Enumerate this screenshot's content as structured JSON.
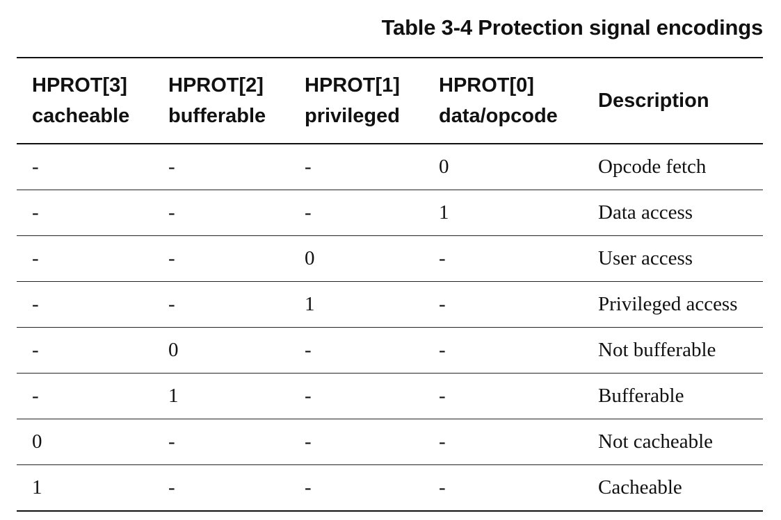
{
  "caption": "Table 3-4 Protection signal encodings",
  "table": {
    "headers": [
      {
        "line1": "HPROT[3]",
        "line2": "cacheable"
      },
      {
        "line1": "HPROT[2]",
        "line2": "bufferable"
      },
      {
        "line1": "HPROT[1]",
        "line2": "privileged"
      },
      {
        "line1": "HPROT[0]",
        "line2": "data/opcode"
      },
      {
        "line1": "Description",
        "line2": ""
      }
    ],
    "rows": [
      [
        "-",
        "-",
        "-",
        "0",
        "Opcode fetch"
      ],
      [
        "-",
        "-",
        "-",
        "1",
        "Data access"
      ],
      [
        "-",
        "-",
        "0",
        "-",
        "User access"
      ],
      [
        "-",
        "-",
        "1",
        "-",
        "Privileged access"
      ],
      [
        "-",
        "0",
        "-",
        "-",
        "Not bufferable"
      ],
      [
        "-",
        "1",
        "-",
        "-",
        "Bufferable"
      ],
      [
        "0",
        "-",
        "-",
        "-",
        "Not cacheable"
      ],
      [
        "1",
        "-",
        "-",
        "-",
        "Cacheable"
      ]
    ]
  }
}
